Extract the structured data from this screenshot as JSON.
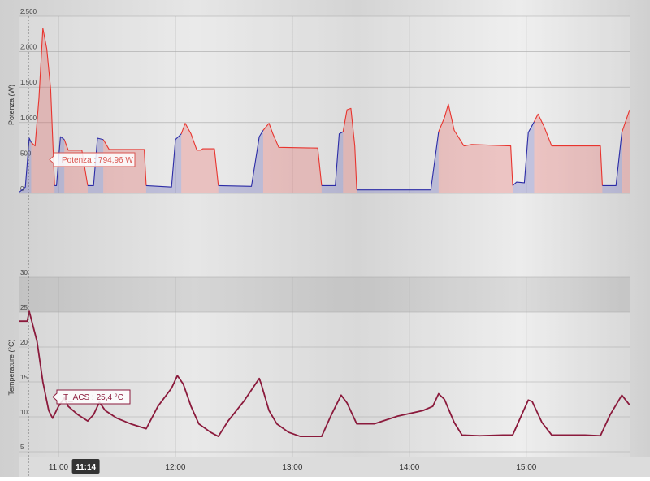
{
  "chart_data": [
    {
      "type": "area",
      "y_label": "Potenza (W)",
      "tooltip": "Potenza : 794,96 W",
      "x": [
        640,
        643,
        645,
        646,
        648,
        650,
        652,
        654,
        656,
        658,
        659,
        661,
        663,
        665,
        672,
        675,
        678,
        680,
        683,
        686,
        704,
        705,
        718,
        720,
        723,
        725,
        728,
        731,
        733,
        734,
        740,
        742,
        759,
        763,
        765,
        768,
        770,
        773,
        793,
        795,
        802,
        804,
        806,
        808,
        810,
        812,
        813,
        851,
        855,
        858,
        860,
        863,
        868,
        872,
        892,
        893,
        895,
        899,
        901,
        904,
        906,
        909,
        913,
        938,
        939,
        946,
        949,
        953
      ],
      "series": [
        {
          "color": "#e8342e",
          "values": [
            null,
            null,
            null,
            720,
            670,
            1350,
            2330,
            2040,
            1470,
            110,
            null,
            null,
            760,
            610,
            610,
            110,
            null,
            null,
            760,
            620,
            620,
            110,
            null,
            null,
            840,
            990,
            840,
            610,
            610,
            630,
            630,
            110,
            null,
            null,
            890,
            990,
            840,
            650,
            640,
            110,
            null,
            null,
            870,
            1180,
            1200,
            670,
            50,
            null,
            870,
            1070,
            1260,
            890,
            670,
            690,
            670,
            110,
            null,
            null,
            null,
            1010,
            1120,
            950,
            670,
            670,
            110,
            null,
            860,
            1180
          ]
        },
        {
          "color": "#2b2ba6",
          "values": [
            20,
            90,
            780,
            720,
            null,
            null,
            null,
            null,
            null,
            110,
            110,
            800,
            760,
            null,
            null,
            110,
            110,
            780,
            760,
            null,
            null,
            110,
            90,
            760,
            840,
            null,
            null,
            null,
            null,
            null,
            null,
            110,
            100,
            800,
            890,
            null,
            null,
            null,
            null,
            110,
            110,
            840,
            870,
            null,
            null,
            null,
            50,
            50,
            870,
            null,
            null,
            null,
            null,
            null,
            null,
            110,
            160,
            150,
            860,
            1010,
            null,
            null,
            null,
            null,
            110,
            110,
            860,
            null
          ]
        }
      ],
      "xlim": [
        640,
        953
      ],
      "ylim": [
        0,
        2500
      ],
      "yticks": [
        0,
        500,
        {
          "value": 1000,
          "label": "1.000"
        },
        {
          "value": 1500,
          "label": "1.500"
        },
        {
          "value": 2000,
          "label": "2.000"
        },
        {
          "value": 2500,
          "label": "2.500"
        }
      ],
      "grid": true
    },
    {
      "type": "line",
      "y_label": "Temperature (°C)",
      "tooltip": "T_ACS : 25,4 °C",
      "x": [
        640,
        644,
        645,
        649,
        652,
        655,
        657,
        660,
        663,
        665,
        670,
        675,
        678,
        681,
        684,
        690,
        697,
        705,
        711,
        718,
        721,
        724,
        728,
        732,
        738,
        742,
        747,
        755,
        763,
        764,
        768,
        772,
        778,
        784,
        795,
        800,
        805,
        808,
        813,
        822,
        834,
        847,
        852,
        855,
        858,
        863,
        867,
        876,
        888,
        893,
        897,
        901,
        903,
        908,
        913,
        930,
        938,
        943,
        949,
        953
      ],
      "series": [
        {
          "color": "#8b1a3c",
          "values": [
            23.7,
            23.7,
            25.1,
            20.8,
            15.0,
            10.9,
            9.8,
            11.5,
            12.7,
            11.5,
            10.3,
            9.4,
            10.3,
            12.1,
            10.9,
            9.8,
            9.0,
            8.3,
            11.5,
            14.1,
            15.9,
            14.7,
            11.5,
            9.0,
            7.8,
            7.2,
            9.4,
            12.2,
            15.5,
            14.7,
            10.9,
            9.0,
            7.8,
            7.2,
            7.2,
            10.3,
            13.1,
            12.0,
            9.0,
            9.0,
            10.1,
            10.9,
            11.5,
            13.3,
            12.5,
            9.2,
            7.4,
            7.3,
            7.4,
            7.4,
            9.9,
            12.4,
            12.2,
            9.2,
            7.4,
            7.4,
            7.3,
            10.3,
            13.1,
            11.7
          ]
        }
      ],
      "xlim": [
        640,
        953
      ],
      "ylim": [
        5,
        30
      ],
      "yticks": [
        5,
        10,
        15,
        20,
        25,
        30
      ],
      "xticks": [
        {
          "value": 660,
          "label": "11:00"
        },
        {
          "value": 720,
          "label": "12:00"
        },
        {
          "value": 780,
          "label": "13:00"
        },
        {
          "value": 840,
          "label": "14:00"
        },
        {
          "value": 900,
          "label": "15:00"
        }
      ],
      "crosshair": {
        "value": 674,
        "label": "11:14"
      },
      "grid": true
    }
  ]
}
